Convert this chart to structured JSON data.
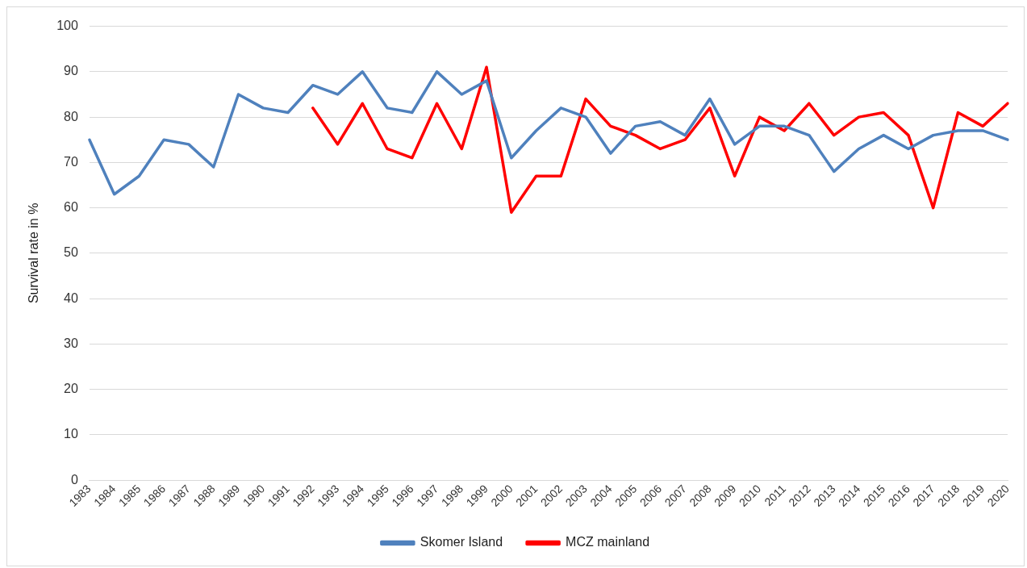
{
  "chart_data": {
    "type": "line",
    "ylabel": "Survival rate in %",
    "categories": [
      "1983",
      "1984",
      "1985",
      "1986",
      "1987",
      "1988",
      "1989",
      "1990",
      "1991",
      "1992",
      "1993",
      "1994",
      "1995",
      "1996",
      "1997",
      "1998",
      "1999",
      "2000",
      "2001",
      "2002",
      "2003",
      "2004",
      "2005",
      "2006",
      "2007",
      "2008",
      "2009",
      "2010",
      "2011",
      "2012",
      "2013",
      "2014",
      "2015",
      "2016",
      "2017",
      "2018",
      "2019",
      "2020"
    ],
    "series": [
      {
        "name": "Skomer Island",
        "color": "#4f81bd",
        "values": [
          75,
          63,
          67,
          75,
          74,
          69,
          85,
          82,
          81,
          87,
          85,
          90,
          82,
          81,
          90,
          85,
          88,
          71,
          77,
          82,
          80,
          72,
          78,
          79,
          76,
          84,
          74,
          78,
          78,
          76,
          68,
          73,
          76,
          73,
          76,
          77,
          77,
          75
        ]
      },
      {
        "name": "MCZ mainland",
        "color": "#ff0000",
        "values": [
          null,
          null,
          null,
          null,
          null,
          null,
          null,
          null,
          null,
          82,
          74,
          83,
          73,
          71,
          83,
          73,
          91,
          59,
          67,
          67,
          84,
          78,
          76,
          73,
          75,
          82,
          67,
          80,
          77,
          83,
          76,
          80,
          81,
          76,
          60,
          81,
          78,
          83
        ]
      }
    ],
    "ylim": [
      0,
      100
    ],
    "yticks": [
      0,
      10,
      20,
      30,
      40,
      50,
      60,
      70,
      80,
      90,
      100
    ],
    "grid": "y",
    "legend": "bottom",
    "marker": "none",
    "line_style": "solid"
  }
}
